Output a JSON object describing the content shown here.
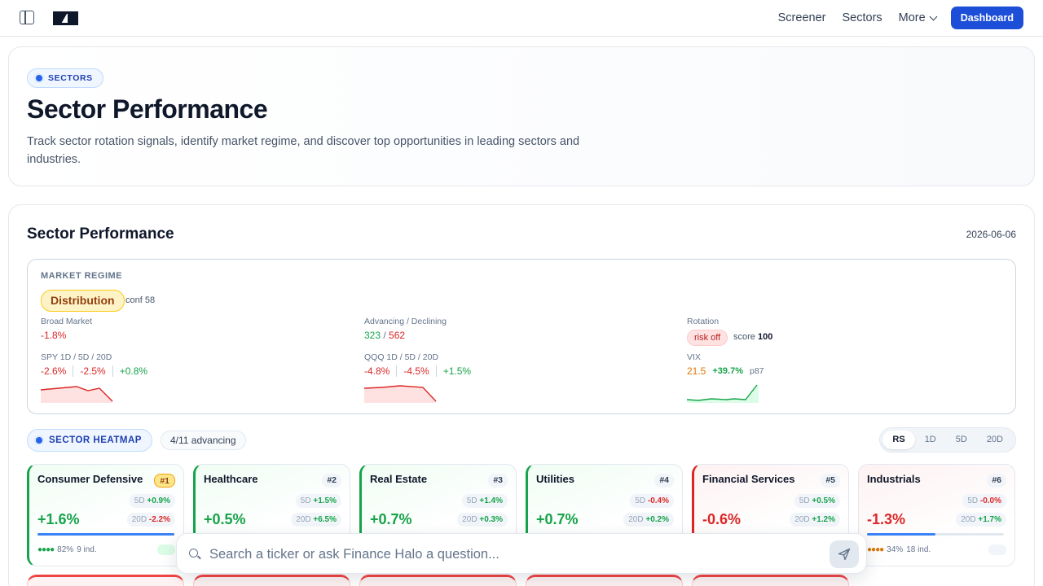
{
  "nav": {
    "links": [
      "Screener",
      "Sectors"
    ],
    "more_label": "More",
    "dashboard_label": "Dashboard"
  },
  "hero": {
    "pill": "SECTORS",
    "title": "Sector Performance",
    "subtitle": "Track sector rotation signals, identify market regime, and discover top opportunities in leading sectors and industries."
  },
  "main": {
    "title": "Sector Performance",
    "date": "2026-06-06"
  },
  "regime": {
    "label": "MARKET REGIME",
    "badge": "Distribution",
    "conf": "conf 58",
    "broad_label": "Broad Market",
    "broad_value": "-1.8%",
    "adv_label": "Advancing / Declining",
    "adv_value": "323",
    "dec_value": "562",
    "adv_sep": " / ",
    "rotation_label": "Rotation",
    "rotation_badge": "risk off",
    "score_label": "score",
    "score_value": "100",
    "spy_label": "SPY 1D / 5D / 20D",
    "spy": [
      "-2.6%",
      "-2.5%",
      "+0.8%"
    ],
    "qqq_label": "QQQ 1D / 5D / 20D",
    "qqq": [
      "-4.8%",
      "-4.5%",
      "+1.5%"
    ],
    "vix_label": "VIX",
    "vix_value": "21.5",
    "vix_change": "+39.7%",
    "vix_pct": "p87"
  },
  "heatmap": {
    "pill": "SECTOR HEATMAP",
    "advancing": "4/11 advancing",
    "tabs": [
      "RS",
      "1D",
      "5D",
      "20D"
    ],
    "active_tab": "RS"
  },
  "sectors": [
    {
      "name": "Consumer Defensive",
      "rank": "#1",
      "d5": "+0.9%",
      "d20": "-2.2%",
      "big": "+1.6%",
      "pct": "82%",
      "ind": "9 ind.",
      "bar": 1.0,
      "tone": "pos"
    },
    {
      "name": "Healthcare",
      "rank": "#2",
      "d5": "+1.5%",
      "d20": "+6.5%",
      "big": "+0.5%",
      "pct": "",
      "ind": "",
      "bar": 0.9,
      "tone": "pos"
    },
    {
      "name": "Real Estate",
      "rank": "#3",
      "d5": "+1.4%",
      "d20": "+0.3%",
      "big": "+0.7%",
      "pct": "",
      "ind": "",
      "bar": 0.8,
      "tone": "pos"
    },
    {
      "name": "Utilities",
      "rank": "#4",
      "d5": "-0.4%",
      "d20": "+0.2%",
      "big": "+0.7%",
      "pct": "",
      "ind": "",
      "bar": 0.7,
      "tone": "pos"
    },
    {
      "name": "Financial Services",
      "rank": "#5",
      "d5": "+0.5%",
      "d20": "+1.2%",
      "big": "-0.6%",
      "pct": "",
      "ind": "",
      "bar": 0.6,
      "tone": "neg"
    },
    {
      "name": "Industrials",
      "rank": "#6",
      "d5": "-0.0%",
      "d20": "+1.7%",
      "big": "-1.3%",
      "pct": "34%",
      "ind": "18 ind.",
      "bar": 0.5,
      "tone": "neu"
    }
  ],
  "search": {
    "placeholder": "Search a ticker or ask Finance Halo a question..."
  },
  "colors": {
    "accent": "#1d4ed8",
    "positive": "#16a34a",
    "negative": "#dc2626",
    "warning": "#d97706"
  }
}
